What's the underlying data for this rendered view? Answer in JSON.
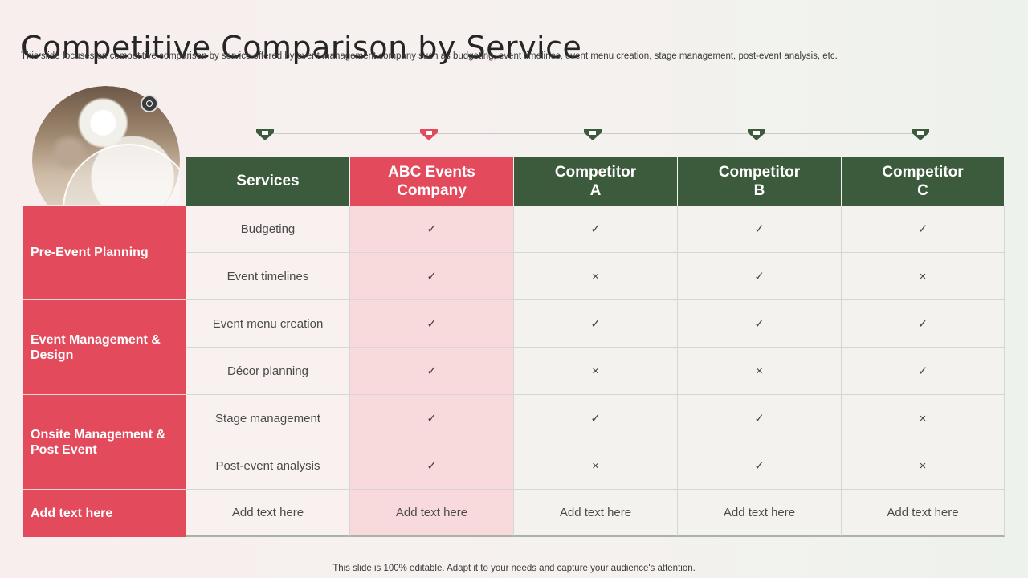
{
  "title": "Competitive Comparison by Service",
  "subtitle": "This slide focuses on competitive comparison by service offered by event management company such as budgeting, event timelines, event menu creation, stage management, post-event analysis, etc.",
  "footer": "This slide is 100% editable. Adapt it to your needs and capture your audience's attention.",
  "colors": {
    "accent_red": "#e34a5c",
    "accent_green": "#3c5a3c"
  },
  "table": {
    "headers": [
      "Services",
      "ABC Events Company",
      "Competitor A",
      "Competitor B",
      "Competitor C"
    ],
    "groups": [
      {
        "label": "Pre-Event Planning",
        "rows": [
          {
            "service": "Budgeting",
            "abc": "✓",
            "a": "✓",
            "b": "✓",
            "c": "✓"
          },
          {
            "service": "Event timelines",
            "abc": "✓",
            "a": "×",
            "b": "✓",
            "c": "×"
          }
        ]
      },
      {
        "label": "Event Management & Design",
        "rows": [
          {
            "service": "Event menu creation",
            "abc": "✓",
            "a": "✓",
            "b": "✓",
            "c": "✓"
          },
          {
            "service": "Décor planning",
            "abc": "✓",
            "a": "×",
            "b": "×",
            "c": "✓"
          }
        ]
      },
      {
        "label": "Onsite Management & Post Event",
        "rows": [
          {
            "service": "Stage management",
            "abc": "✓",
            "a": "✓",
            "b": "✓",
            "c": "×"
          },
          {
            "service": "Post-event analysis",
            "abc": "✓",
            "a": "×",
            "b": "✓",
            "c": "×"
          }
        ]
      }
    ],
    "footer_row": {
      "label": "Add text here",
      "service": "Add text here",
      "abc": "Add text here",
      "a": "Add text here",
      "b": "Add text here",
      "c": "Add text here"
    }
  }
}
